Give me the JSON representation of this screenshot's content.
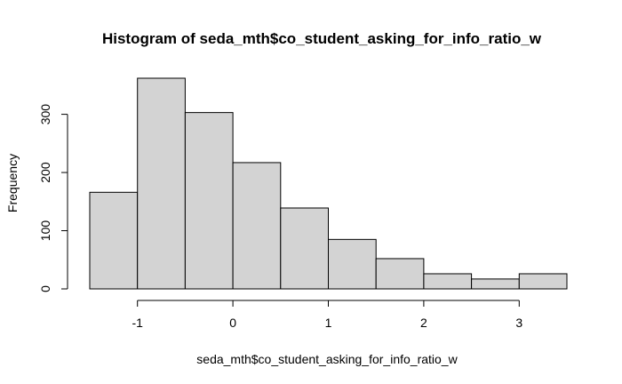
{
  "chart_data": {
    "type": "bar",
    "title": "Histogram of seda_mth$co_student_asking_for_info_ratio_w",
    "xlabel": "seda_mth$co_student_asking_for_info_ratio_w",
    "ylabel": "Frequency",
    "bins": [
      {
        "start": -1.5,
        "end": -1.0,
        "value": 166
      },
      {
        "start": -1.0,
        "end": -0.5,
        "value": 362
      },
      {
        "start": -0.5,
        "end": 0.0,
        "value": 303
      },
      {
        "start": 0.0,
        "end": 0.5,
        "value": 217
      },
      {
        "start": 0.5,
        "end": 1.0,
        "value": 139
      },
      {
        "start": 1.0,
        "end": 1.5,
        "value": 85
      },
      {
        "start": 1.5,
        "end": 2.0,
        "value": 52
      },
      {
        "start": 2.0,
        "end": 2.5,
        "value": 26
      },
      {
        "start": 2.5,
        "end": 3.0,
        "value": 17
      },
      {
        "start": 3.0,
        "end": 3.5,
        "value": 26
      }
    ],
    "xticks": [
      -1,
      0,
      1,
      2,
      3
    ],
    "yticks": [
      0,
      100,
      200,
      300
    ],
    "xlim": [
      -1.5,
      3.5
    ],
    "ylim": [
      0,
      362
    ],
    "grid": false,
    "colors": {
      "bar_fill": "#d3d3d3",
      "bar_stroke": "#000000"
    }
  }
}
